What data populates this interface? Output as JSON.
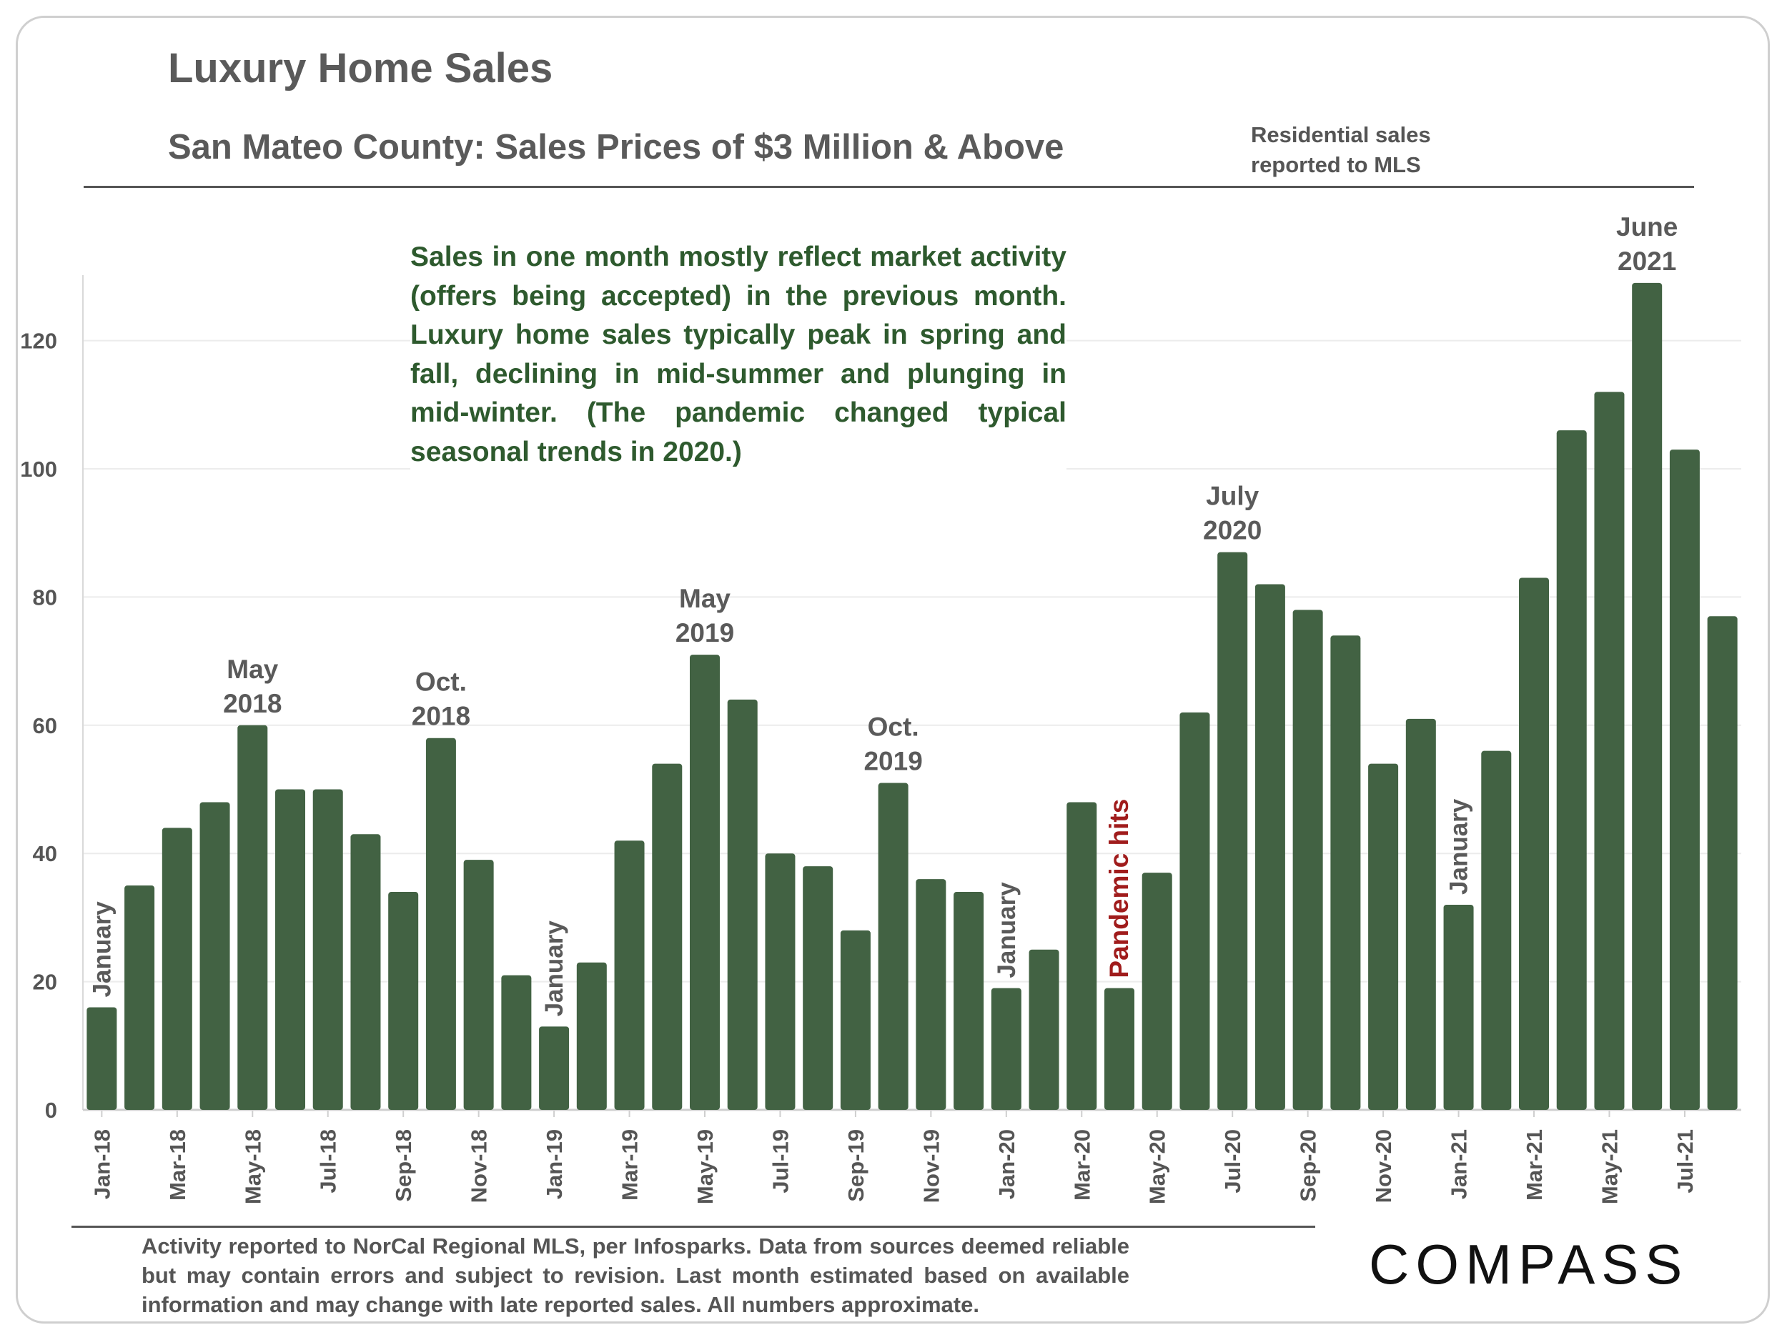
{
  "header": {
    "title": "Luxury Home Sales",
    "subtitle": "San Mateo County: Sales Prices of $3 Million & Above",
    "source_note": [
      "Residential sales",
      "reported to MLS"
    ]
  },
  "note": "Sales in one month mostly reflect market activity (offers being accepted) in the previous month. Luxury home sales typically peak in spring and fall, declining in mid-summer and plunging in mid-winter. (The pandemic changed typical seasonal trends in 2020.)",
  "footer": "Activity reported to NorCal Regional MLS, per Infosparks. Data from sources deemed reliable but may contain errors and subject to revision. Last month estimated based on available information and may change with late reported sales. All numbers approximate.",
  "logo": {
    "text": "COMPASS"
  },
  "colors": {
    "bar": "#426243",
    "annotation": "#5a5a5a",
    "pandemic": "#a01c1c",
    "tick": "#555555"
  },
  "chart_data": {
    "type": "bar",
    "title": "San Mateo County: Sales Prices of $3 Million & Above",
    "xlabel": "",
    "ylabel": "",
    "ylim": [
      0,
      130
    ],
    "yticks": [
      0,
      20,
      40,
      60,
      80,
      100,
      120
    ],
    "grid": true,
    "categories": [
      "Jan-18",
      "Feb-18",
      "Mar-18",
      "Apr-18",
      "May-18",
      "Jun-18",
      "Jul-18",
      "Aug-18",
      "Sep-18",
      "Oct-18",
      "Nov-18",
      "Dec-18",
      "Jan-19",
      "Feb-19",
      "Mar-19",
      "Apr-19",
      "May-19",
      "Jun-19",
      "Jul-19",
      "Aug-19",
      "Sep-19",
      "Oct-19",
      "Nov-19",
      "Dec-19",
      "Jan-20",
      "Feb-20",
      "Mar-20",
      "Apr-20",
      "May-20",
      "Jun-20",
      "Jul-20",
      "Aug-20",
      "Sep-20",
      "Oct-20",
      "Nov-20",
      "Dec-20",
      "Jan-21",
      "Feb-21",
      "Mar-21",
      "Apr-21",
      "May-21",
      "Jun-21",
      "Jul-21",
      "Aug-21"
    ],
    "values": [
      16,
      35,
      44,
      48,
      60,
      50,
      50,
      43,
      34,
      58,
      39,
      21,
      13,
      23,
      42,
      54,
      71,
      64,
      40,
      38,
      28,
      51,
      36,
      34,
      19,
      25,
      48,
      19,
      37,
      62,
      87,
      82,
      78,
      74,
      54,
      61,
      32,
      56,
      83,
      106,
      112,
      129,
      103,
      77
    ],
    "annotations": [
      {
        "index": 4,
        "lines": [
          "May",
          "2018"
        ],
        "style": "label"
      },
      {
        "index": 9,
        "lines": [
          "Oct.",
          "2018"
        ],
        "style": "label"
      },
      {
        "index": 16,
        "lines": [
          "May",
          "2019"
        ],
        "style": "label"
      },
      {
        "index": 21,
        "lines": [
          "Oct.",
          "2019"
        ],
        "style": "label"
      },
      {
        "index": 30,
        "lines": [
          "July",
          "2020"
        ],
        "style": "label"
      },
      {
        "index": 41,
        "lines": [
          "June",
          "2021"
        ],
        "style": "label"
      },
      {
        "index": 0,
        "lines": [
          "January"
        ],
        "style": "vertical"
      },
      {
        "index": 12,
        "lines": [
          "January"
        ],
        "style": "vertical"
      },
      {
        "index": 24,
        "lines": [
          "January"
        ],
        "style": "vertical"
      },
      {
        "index": 36,
        "lines": [
          "January"
        ],
        "style": "vertical"
      },
      {
        "index": 27,
        "lines": [
          "Pandemic hits"
        ],
        "style": "vertical-red"
      }
    ]
  }
}
